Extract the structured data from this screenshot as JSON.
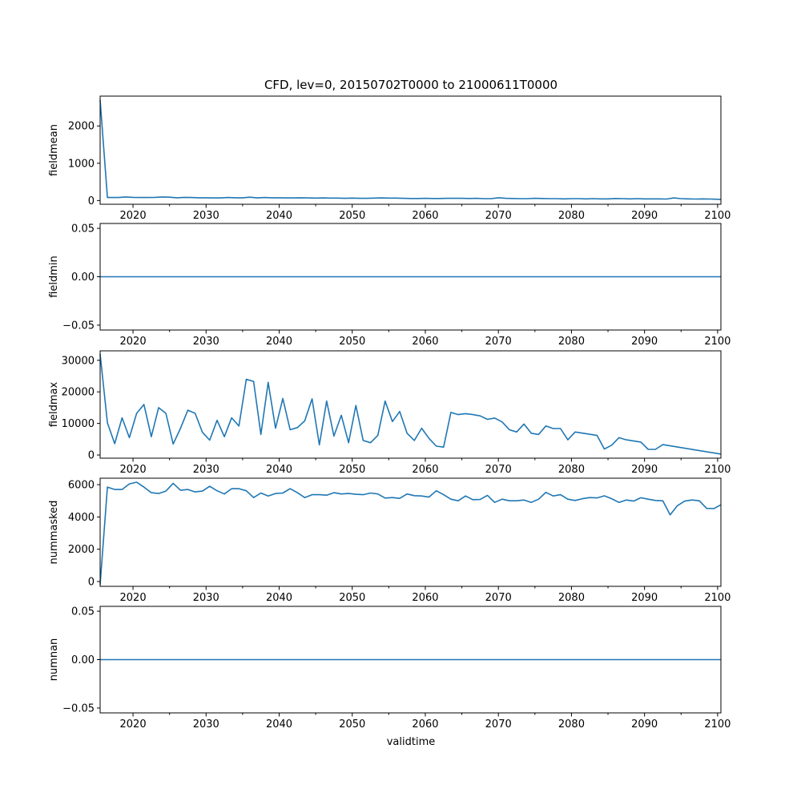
{
  "chart_data": {
    "type": "line",
    "title": "CFD, lev=0, 20150702T0000 to 21000611T0000",
    "xlabel": "validtime",
    "xlim": [
      2015.5,
      2100.45
    ],
    "x_ticks": [
      "2020",
      "2030",
      "2040",
      "2050",
      "2060",
      "2070",
      "2080",
      "2090",
      "2100"
    ],
    "panels": [
      {
        "ylabel": "fieldmean",
        "ylim": [
          -100,
          2800
        ],
        "y_ticks": [
          {
            "v": 0,
            "label": "0"
          },
          {
            "v": 1000,
            "label": "1000"
          },
          {
            "v": 2000,
            "label": "2000"
          }
        ],
        "x": [
          2015.5,
          2016.5,
          2018,
          2019,
          2020,
          2021,
          2022,
          2023,
          2024,
          2025,
          2026,
          2027,
          2028,
          2029,
          2030,
          2031,
          2032,
          2033,
          2034,
          2035,
          2036,
          2037,
          2038,
          2039,
          2040,
          2041,
          2042,
          2043,
          2044,
          2045,
          2046,
          2047,
          2048,
          2049,
          2050,
          2051,
          2052,
          2053,
          2054,
          2055,
          2056,
          2057,
          2058,
          2059,
          2060,
          2061,
          2062,
          2063,
          2064,
          2065,
          2066,
          2067,
          2068,
          2069,
          2070,
          2071,
          2072,
          2073,
          2074,
          2075,
          2076,
          2077,
          2078,
          2079,
          2080,
          2081,
          2082,
          2083,
          2084,
          2085,
          2086,
          2087,
          2088,
          2089,
          2090,
          2091,
          2092,
          2093,
          2094,
          2095,
          2096,
          2097,
          2098,
          2099,
          2100.45
        ],
        "y": [
          2700,
          80,
          80,
          95,
          85,
          80,
          80,
          85,
          95,
          90,
          75,
          85,
          80,
          75,
          75,
          70,
          70,
          80,
          75,
          75,
          90,
          70,
          80,
          75,
          75,
          70,
          70,
          75,
          70,
          65,
          70,
          65,
          65,
          60,
          65,
          60,
          60,
          65,
          70,
          65,
          65,
          60,
          55,
          55,
          60,
          55,
          55,
          60,
          60,
          60,
          55,
          60,
          50,
          50,
          75,
          60,
          55,
          50,
          50,
          60,
          55,
          50,
          50,
          45,
          50,
          50,
          45,
          50,
          45,
          45,
          55,
          50,
          45,
          50,
          45,
          45,
          45,
          40,
          70,
          50,
          45,
          40,
          45,
          40,
          30
        ]
      },
      {
        "ylabel": "fieldmin",
        "ylim": [
          -0.055,
          0.055
        ],
        "y_ticks": [
          {
            "v": -0.05,
            "label": "−0.05"
          },
          {
            "v": 0.0,
            "label": "0.00"
          },
          {
            "v": 0.05,
            "label": "0.05"
          }
        ],
        "x": [
          2015.5,
          2100.45
        ],
        "y": [
          0,
          0
        ]
      },
      {
        "ylabel": "fieldmax",
        "ylim": [
          -1000,
          33000
        ],
        "y_ticks": [
          {
            "v": 0,
            "label": "0"
          },
          {
            "v": 10000,
            "label": "10000"
          },
          {
            "v": 20000,
            "label": "20000"
          },
          {
            "v": 30000,
            "label": "30000"
          }
        ],
        "x": [
          2015.5,
          2016.5,
          2017.5,
          2018.5,
          2019.5,
          2020.5,
          2021.5,
          2022.5,
          2023.5,
          2024.5,
          2025.5,
          2026.5,
          2027.5,
          2028.5,
          2029.5,
          2030.5,
          2031.5,
          2032.5,
          2033.5,
          2034.5,
          2035.5,
          2036.5,
          2037.5,
          2038.5,
          2039.5,
          2040.5,
          2041.5,
          2042.5,
          2043.5,
          2044.5,
          2045.5,
          2046.5,
          2047.5,
          2048.5,
          2049.5,
          2050.5,
          2051.5,
          2052.5,
          2053.5,
          2054.5,
          2055.5,
          2056.5,
          2057.5,
          2058.5,
          2059.5,
          2060.5,
          2061.5,
          2062.5,
          2063.5,
          2064.5,
          2065.5,
          2066.5,
          2067.5,
          2068.5,
          2069.5,
          2070.5,
          2071.5,
          2072.5,
          2073.5,
          2074.5,
          2075.5,
          2076.5,
          2077.5,
          2078.5,
          2079.5,
          2080.5,
          2083.5,
          2084.5,
          2085.5,
          2086.5,
          2087.5,
          2089.5,
          2090.5,
          2091.5,
          2092.5,
          2100.45
        ],
        "y": [
          32000,
          10200,
          3600,
          11800,
          5500,
          13200,
          16000,
          5800,
          15000,
          13200,
          3500,
          8500,
          14200,
          13200,
          7200,
          4700,
          11000,
          5800,
          11800,
          9200,
          24000,
          23300,
          6500,
          23000,
          8500,
          17900,
          8000,
          8700,
          10800,
          17800,
          3200,
          17100,
          6000,
          12600,
          3900,
          15700,
          4600,
          3900,
          6200,
          17100,
          10600,
          13800,
          6900,
          4600,
          8500,
          5300,
          2800,
          2500,
          13500,
          12800,
          13100,
          12800,
          12400,
          11300,
          11700,
          10500,
          8000,
          7300,
          9800,
          6900,
          6500,
          9200,
          8400,
          8400,
          4800,
          7300,
          6200,
          1900,
          3100,
          5500,
          4800,
          4100,
          1800,
          1800,
          3300,
          300
        ]
      },
      {
        "ylabel": "nummasked",
        "ylim": [
          -300,
          6400
        ],
        "y_ticks": [
          {
            "v": 0,
            "label": "0"
          },
          {
            "v": 2000,
            "label": "2000"
          },
          {
            "v": 4000,
            "label": "4000"
          },
          {
            "v": 6000,
            "label": "6000"
          }
        ],
        "x": [
          2015.5,
          2016.5,
          2017.5,
          2018.5,
          2019.5,
          2020.5,
          2021.5,
          2022.5,
          2023.5,
          2024.5,
          2025.5,
          2026.5,
          2027.5,
          2028.5,
          2029.5,
          2030.5,
          2031.5,
          2032.5,
          2033.5,
          2034.5,
          2035.5,
          2036.5,
          2037.5,
          2038.5,
          2039.5,
          2040.5,
          2041.5,
          2042.5,
          2043.5,
          2044.5,
          2045.5,
          2046.5,
          2047.5,
          2048.5,
          2049.5,
          2050.5,
          2051.5,
          2052.5,
          2053.5,
          2054.5,
          2055.5,
          2056.5,
          2057.5,
          2058.5,
          2059.5,
          2060.5,
          2061.5,
          2062.5,
          2063.5,
          2064.5,
          2065.5,
          2066.5,
          2067.5,
          2068.5,
          2069.5,
          2070.5,
          2071.5,
          2072.5,
          2073.5,
          2074.5,
          2075.5,
          2076.5,
          2077.5,
          2078.5,
          2079.5,
          2080.5,
          2081.5,
          2082.5,
          2083.5,
          2084.5,
          2085.5,
          2086.5,
          2087.5,
          2088.5,
          2089.5,
          2090.5,
          2091.5,
          2092.5,
          2093.5,
          2094.5,
          2095.5,
          2096.5,
          2097.5,
          2098.5,
          2099.5,
          2100.45
        ],
        "y": [
          -200,
          5850,
          5700,
          5700,
          6050,
          6150,
          5850,
          5500,
          5450,
          5600,
          6080,
          5650,
          5700,
          5550,
          5600,
          5900,
          5620,
          5420,
          5750,
          5750,
          5620,
          5200,
          5480,
          5300,
          5450,
          5480,
          5750,
          5500,
          5200,
          5380,
          5380,
          5350,
          5500,
          5420,
          5450,
          5400,
          5380,
          5480,
          5420,
          5170,
          5200,
          5150,
          5420,
          5320,
          5300,
          5230,
          5620,
          5380,
          5100,
          5000,
          5300,
          5070,
          5080,
          5340,
          4900,
          5100,
          5000,
          5000,
          5050,
          4900,
          5100,
          5520,
          5300,
          5380,
          5100,
          5020,
          5130,
          5200,
          5180,
          5310,
          5130,
          4900,
          5050,
          4980,
          5190,
          5100,
          5020,
          5000,
          4130,
          4700,
          4980,
          5050,
          5000,
          4530,
          4520,
          4750
        ]
      },
      {
        "ylabel": "numnan",
        "ylim": [
          -0.055,
          0.055
        ],
        "y_ticks": [
          {
            "v": -0.05,
            "label": "−0.05"
          },
          {
            "v": 0.0,
            "label": "0.00"
          },
          {
            "v": 0.05,
            "label": "0.05"
          }
        ],
        "x": [
          2015.5,
          2100.45
        ],
        "y": [
          0,
          0
        ]
      }
    ]
  }
}
